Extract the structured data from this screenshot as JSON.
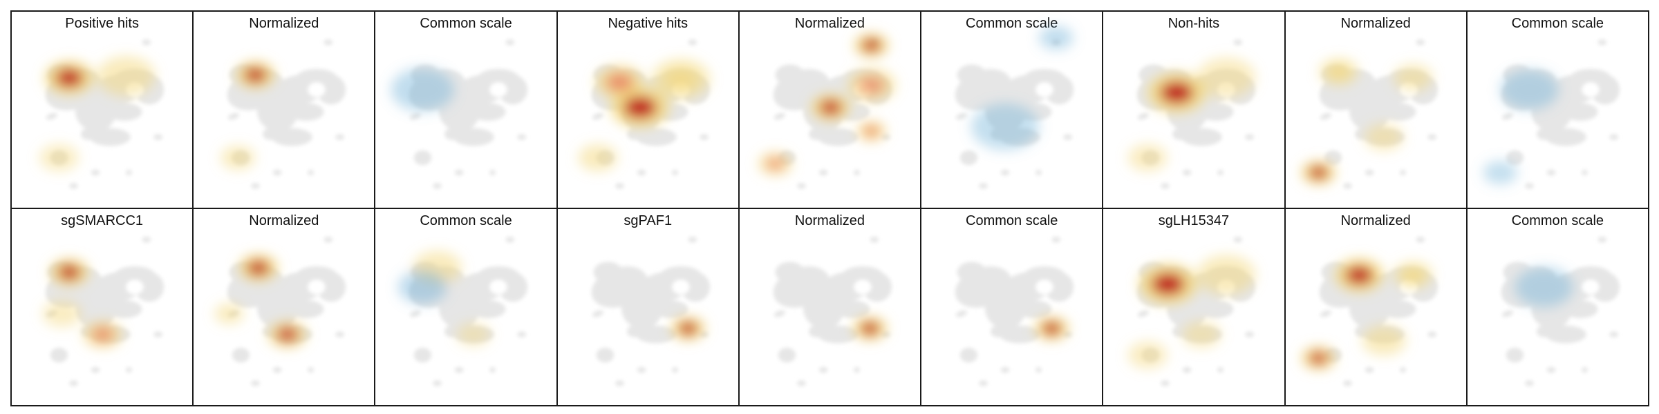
{
  "chart_data": {
    "type": "heatmap",
    "rows": [
      {
        "panels": [
          {
            "title": "Positive hits",
            "hotspots": [
              {
                "x": 0.27,
                "y": 0.22,
                "intensity": 1.0,
                "spread": 1.0
              },
              {
                "x": 0.66,
                "y": 0.21,
                "intensity": 0.3,
                "spread": 1.2
              },
              {
                "x": 0.2,
                "y": 0.76,
                "intensity": 0.2,
                "spread": 0.8
              }
            ]
          },
          {
            "title": "Normalized",
            "hotspots": [
              {
                "x": 0.3,
                "y": 0.2,
                "intensity": 1.0,
                "spread": 0.8
              },
              {
                "x": 0.18,
                "y": 0.76,
                "intensity": 0.3,
                "spread": 0.7
              }
            ]
          },
          {
            "title": "Common scale",
            "hotspots": [
              {
                "x": 0.2,
                "y": 0.3,
                "intensity": -0.15,
                "spread": 1.3
              }
            ]
          },
          {
            "title": "Negative hits",
            "hotspots": [
              {
                "x": 0.44,
                "y": 0.42,
                "intensity": 1.0,
                "spread": 1.2
              },
              {
                "x": 0.3,
                "y": 0.25,
                "intensity": 0.6,
                "spread": 1.0
              },
              {
                "x": 0.72,
                "y": 0.23,
                "intensity": 0.35,
                "spread": 1.2
              },
              {
                "x": 0.15,
                "y": 0.76,
                "intensity": 0.3,
                "spread": 0.8
              }
            ]
          },
          {
            "title": "Normalized",
            "hotspots": [
              {
                "x": 0.78,
                "y": 0.0,
                "intensity": 1.0,
                "spread": 0.7
              },
              {
                "x": 0.5,
                "y": 0.42,
                "intensity": 0.9,
                "spread": 0.8
              },
              {
                "x": 0.78,
                "y": 0.27,
                "intensity": 0.4,
                "spread": 1.0
              },
              {
                "x": 0.78,
                "y": 0.58,
                "intensity": 0.6,
                "spread": 0.6
              },
              {
                "x": 0.12,
                "y": 0.8,
                "intensity": 0.4,
                "spread": 0.7
              }
            ]
          },
          {
            "title": "Common scale",
            "hotspots": [
              {
                "x": 0.8,
                "y": -0.05,
                "intensity": -0.15,
                "spread": 0.7
              },
              {
                "x": 0.45,
                "y": 0.55,
                "intensity": -0.1,
                "spread": 1.4
              }
            ]
          },
          {
            "title": "Non-hits",
            "hotspots": [
              {
                "x": 0.38,
                "y": 0.32,
                "intensity": 1.0,
                "spread": 1.2
              },
              {
                "x": 0.72,
                "y": 0.22,
                "intensity": 0.25,
                "spread": 1.2
              },
              {
                "x": 0.18,
                "y": 0.76,
                "intensity": 0.25,
                "spread": 0.8
              }
            ]
          },
          {
            "title": "Normalized",
            "hotspots": [
              {
                "x": 0.1,
                "y": 0.86,
                "intensity": 1.0,
                "spread": 0.7
              },
              {
                "x": 0.24,
                "y": 0.18,
                "intensity": 0.35,
                "spread": 0.8
              },
              {
                "x": 0.75,
                "y": 0.22,
                "intensity": 0.3,
                "spread": 0.8
              },
              {
                "x": 0.55,
                "y": 0.62,
                "intensity": 0.25,
                "spread": 0.8
              }
            ]
          },
          {
            "title": "Common scale",
            "hotspots": [
              {
                "x": 0.3,
                "y": 0.3,
                "intensity": -0.15,
                "spread": 1.2
              },
              {
                "x": 0.1,
                "y": 0.86,
                "intensity": -0.1,
                "spread": 0.7
              }
            ]
          }
        ]
      },
      {
        "panels": [
          {
            "title": "sgSMARCC1",
            "hotspots": [
              {
                "x": 0.27,
                "y": 0.2,
                "intensity": 1.0,
                "spread": 0.8
              },
              {
                "x": 0.5,
                "y": 0.62,
                "intensity": 0.55,
                "spread": 0.8
              },
              {
                "x": 0.22,
                "y": 0.48,
                "intensity": 0.2,
                "spread": 0.8
              }
            ]
          },
          {
            "title": "Normalized",
            "hotspots": [
              {
                "x": 0.32,
                "y": 0.17,
                "intensity": 1.0,
                "spread": 0.8
              },
              {
                "x": 0.52,
                "y": 0.62,
                "intensity": 0.7,
                "spread": 0.8
              },
              {
                "x": 0.12,
                "y": 0.48,
                "intensity": 0.3,
                "spread": 0.6
              }
            ]
          },
          {
            "title": "Common scale",
            "hotspots": [
              {
                "x": 0.3,
                "y": 0.17,
                "intensity": 0.3,
                "spread": 1.0
              },
              {
                "x": 0.2,
                "y": 0.3,
                "intensity": -0.2,
                "spread": 1.0
              },
              {
                "x": 0.55,
                "y": 0.62,
                "intensity": 0.15,
                "spread": 0.7
              }
            ]
          },
          {
            "title": "sgPAF1",
            "hotspots": [
              {
                "x": 0.77,
                "y": 0.58,
                "intensity": 1.0,
                "spread": 0.7
              }
            ]
          },
          {
            "title": "Normalized",
            "hotspots": [
              {
                "x": 0.77,
                "y": 0.58,
                "intensity": 1.0,
                "spread": 0.7
              }
            ]
          },
          {
            "title": "Common scale",
            "hotspots": [
              {
                "x": 0.77,
                "y": 0.58,
                "intensity": 1.0,
                "spread": 0.7
              }
            ]
          },
          {
            "title": "sgLH15347",
            "hotspots": [
              {
                "x": 0.32,
                "y": 0.28,
                "intensity": 1.0,
                "spread": 1.2
              },
              {
                "x": 0.72,
                "y": 0.22,
                "intensity": 0.3,
                "spread": 1.2
              },
              {
                "x": 0.18,
                "y": 0.76,
                "intensity": 0.25,
                "spread": 0.8
              },
              {
                "x": 0.55,
                "y": 0.62,
                "intensity": 0.2,
                "spread": 0.8
              }
            ]
          },
          {
            "title": "Normalized",
            "hotspots": [
              {
                "x": 0.38,
                "y": 0.22,
                "intensity": 1.0,
                "spread": 1.0
              },
              {
                "x": 0.1,
                "y": 0.78,
                "intensity": 0.8,
                "spread": 0.7
              },
              {
                "x": 0.75,
                "y": 0.22,
                "intensity": 0.35,
                "spread": 0.8
              },
              {
                "x": 0.55,
                "y": 0.66,
                "intensity": 0.3,
                "spread": 0.9
              }
            ]
          },
          {
            "title": "Common scale",
            "hotspots": [
              {
                "x": 0.4,
                "y": 0.3,
                "intensity": -0.15,
                "spread": 1.2
              }
            ]
          }
        ]
      }
    ],
    "colormap": {
      "low": "#6baed6",
      "mid": "#f4d87a",
      "high": "#c0141c",
      "background_shape": "#e6e6e6"
    },
    "axes": "none",
    "grid": false,
    "legend": "none"
  }
}
